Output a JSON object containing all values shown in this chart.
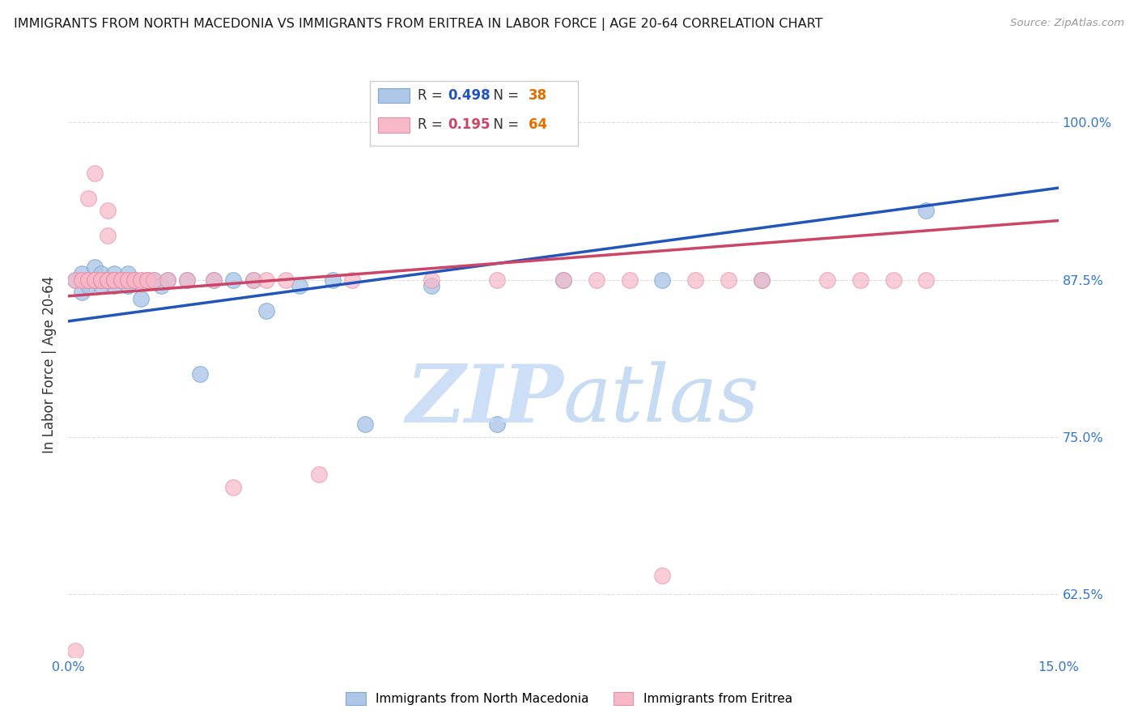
{
  "title": "IMMIGRANTS FROM NORTH MACEDONIA VS IMMIGRANTS FROM ERITREA IN LABOR FORCE | AGE 20-64 CORRELATION CHART",
  "source": "Source: ZipAtlas.com",
  "ylabel": "In Labor Force | Age 20-64",
  "xlim": [
    0.0,
    0.15
  ],
  "ylim": [
    0.575,
    1.04
  ],
  "yticks": [
    0.625,
    0.75,
    0.875,
    1.0
  ],
  "ytick_labels": [
    "62.5%",
    "75.0%",
    "87.5%",
    "100.0%"
  ],
  "xticks": [
    0.0,
    0.025,
    0.05,
    0.075,
    0.1,
    0.125,
    0.15
  ],
  "xtick_labels": [
    "0.0%",
    "",
    "",
    "",
    "",
    "",
    "15.0%"
  ],
  "blue_fill": "#aec6e8",
  "blue_edge": "#7aaad0",
  "pink_fill": "#f7b8c8",
  "pink_edge": "#e890a8",
  "blue_line_color": "#2255bb",
  "pink_line_color": "#cc4466",
  "R_blue": 0.498,
  "N_blue": 38,
  "R_pink": 0.195,
  "N_pink": 64,
  "axis_label_color": "#3377cc",
  "grid_color": "#dddddd",
  "legend_edge": "#cccccc",
  "watermark_zip_color": "#c5daf5",
  "watermark_atlas_color": "#90b8e8",
  "blue_x": [
    0.001,
    0.002,
    0.002,
    0.003,
    0.003,
    0.004,
    0.004,
    0.005,
    0.005,
    0.006,
    0.006,
    0.007,
    0.007,
    0.008,
    0.008,
    0.009,
    0.009,
    0.01,
    0.011,
    0.012,
    0.013,
    0.014,
    0.015,
    0.018,
    0.02,
    0.022,
    0.025,
    0.028,
    0.03,
    0.035,
    0.04,
    0.045,
    0.055,
    0.065,
    0.075,
    0.09,
    0.105,
    0.13
  ],
  "blue_y": [
    0.875,
    0.865,
    0.88,
    0.87,
    0.875,
    0.875,
    0.885,
    0.87,
    0.88,
    0.875,
    0.875,
    0.87,
    0.88,
    0.875,
    0.875,
    0.87,
    0.88,
    0.875,
    0.86,
    0.875,
    0.875,
    0.87,
    0.875,
    0.875,
    0.8,
    0.875,
    0.875,
    0.875,
    0.85,
    0.87,
    0.875,
    0.76,
    0.87,
    0.76,
    0.875,
    0.875,
    0.875,
    0.93
  ],
  "pink_x": [
    0.001,
    0.001,
    0.002,
    0.002,
    0.003,
    0.003,
    0.003,
    0.004,
    0.004,
    0.004,
    0.004,
    0.005,
    0.005,
    0.005,
    0.005,
    0.005,
    0.006,
    0.006,
    0.006,
    0.006,
    0.006,
    0.006,
    0.007,
    0.007,
    0.007,
    0.007,
    0.007,
    0.008,
    0.008,
    0.008,
    0.008,
    0.009,
    0.009,
    0.009,
    0.01,
    0.01,
    0.01,
    0.011,
    0.011,
    0.012,
    0.012,
    0.013,
    0.015,
    0.018,
    0.022,
    0.025,
    0.028,
    0.03,
    0.033,
    0.038,
    0.043,
    0.055,
    0.065,
    0.075,
    0.08,
    0.085,
    0.09,
    0.095,
    0.1,
    0.105,
    0.115,
    0.12,
    0.125,
    0.13
  ],
  "pink_y": [
    0.58,
    0.875,
    0.875,
    0.875,
    0.875,
    0.875,
    0.94,
    0.96,
    0.875,
    0.875,
    0.875,
    0.875,
    0.875,
    0.875,
    0.875,
    0.875,
    0.875,
    0.875,
    0.875,
    0.875,
    0.91,
    0.93,
    0.875,
    0.875,
    0.875,
    0.875,
    0.875,
    0.875,
    0.875,
    0.875,
    0.875,
    0.875,
    0.875,
    0.875,
    0.875,
    0.875,
    0.875,
    0.875,
    0.875,
    0.875,
    0.875,
    0.875,
    0.875,
    0.875,
    0.875,
    0.71,
    0.875,
    0.875,
    0.875,
    0.72,
    0.875,
    0.875,
    0.875,
    0.875,
    0.875,
    0.875,
    0.64,
    0.875,
    0.875,
    0.875,
    0.875,
    0.875,
    0.875,
    0.875
  ],
  "blue_trendline_x": [
    0.0,
    0.15
  ],
  "blue_trendline_y": [
    0.842,
    0.948
  ],
  "pink_trendline_x": [
    0.0,
    0.15
  ],
  "pink_trendline_y": [
    0.862,
    0.922
  ]
}
